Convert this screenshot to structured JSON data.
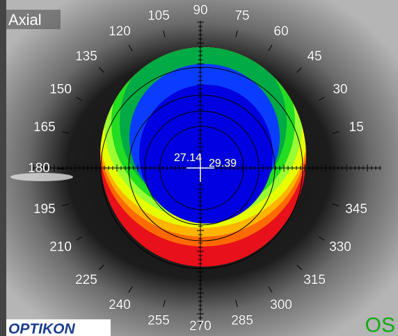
{
  "mode_label": "Axial",
  "angle_labels": [
    15,
    30,
    45,
    60,
    75,
    90,
    105,
    120,
    135,
    150,
    165,
    180,
    195,
    210,
    225,
    240,
    255,
    270,
    285,
    300,
    315,
    330,
    345
  ],
  "readings": [
    "27.14",
    "29.39"
  ],
  "logo": "OPTIKON",
  "eye": "OS"
}
